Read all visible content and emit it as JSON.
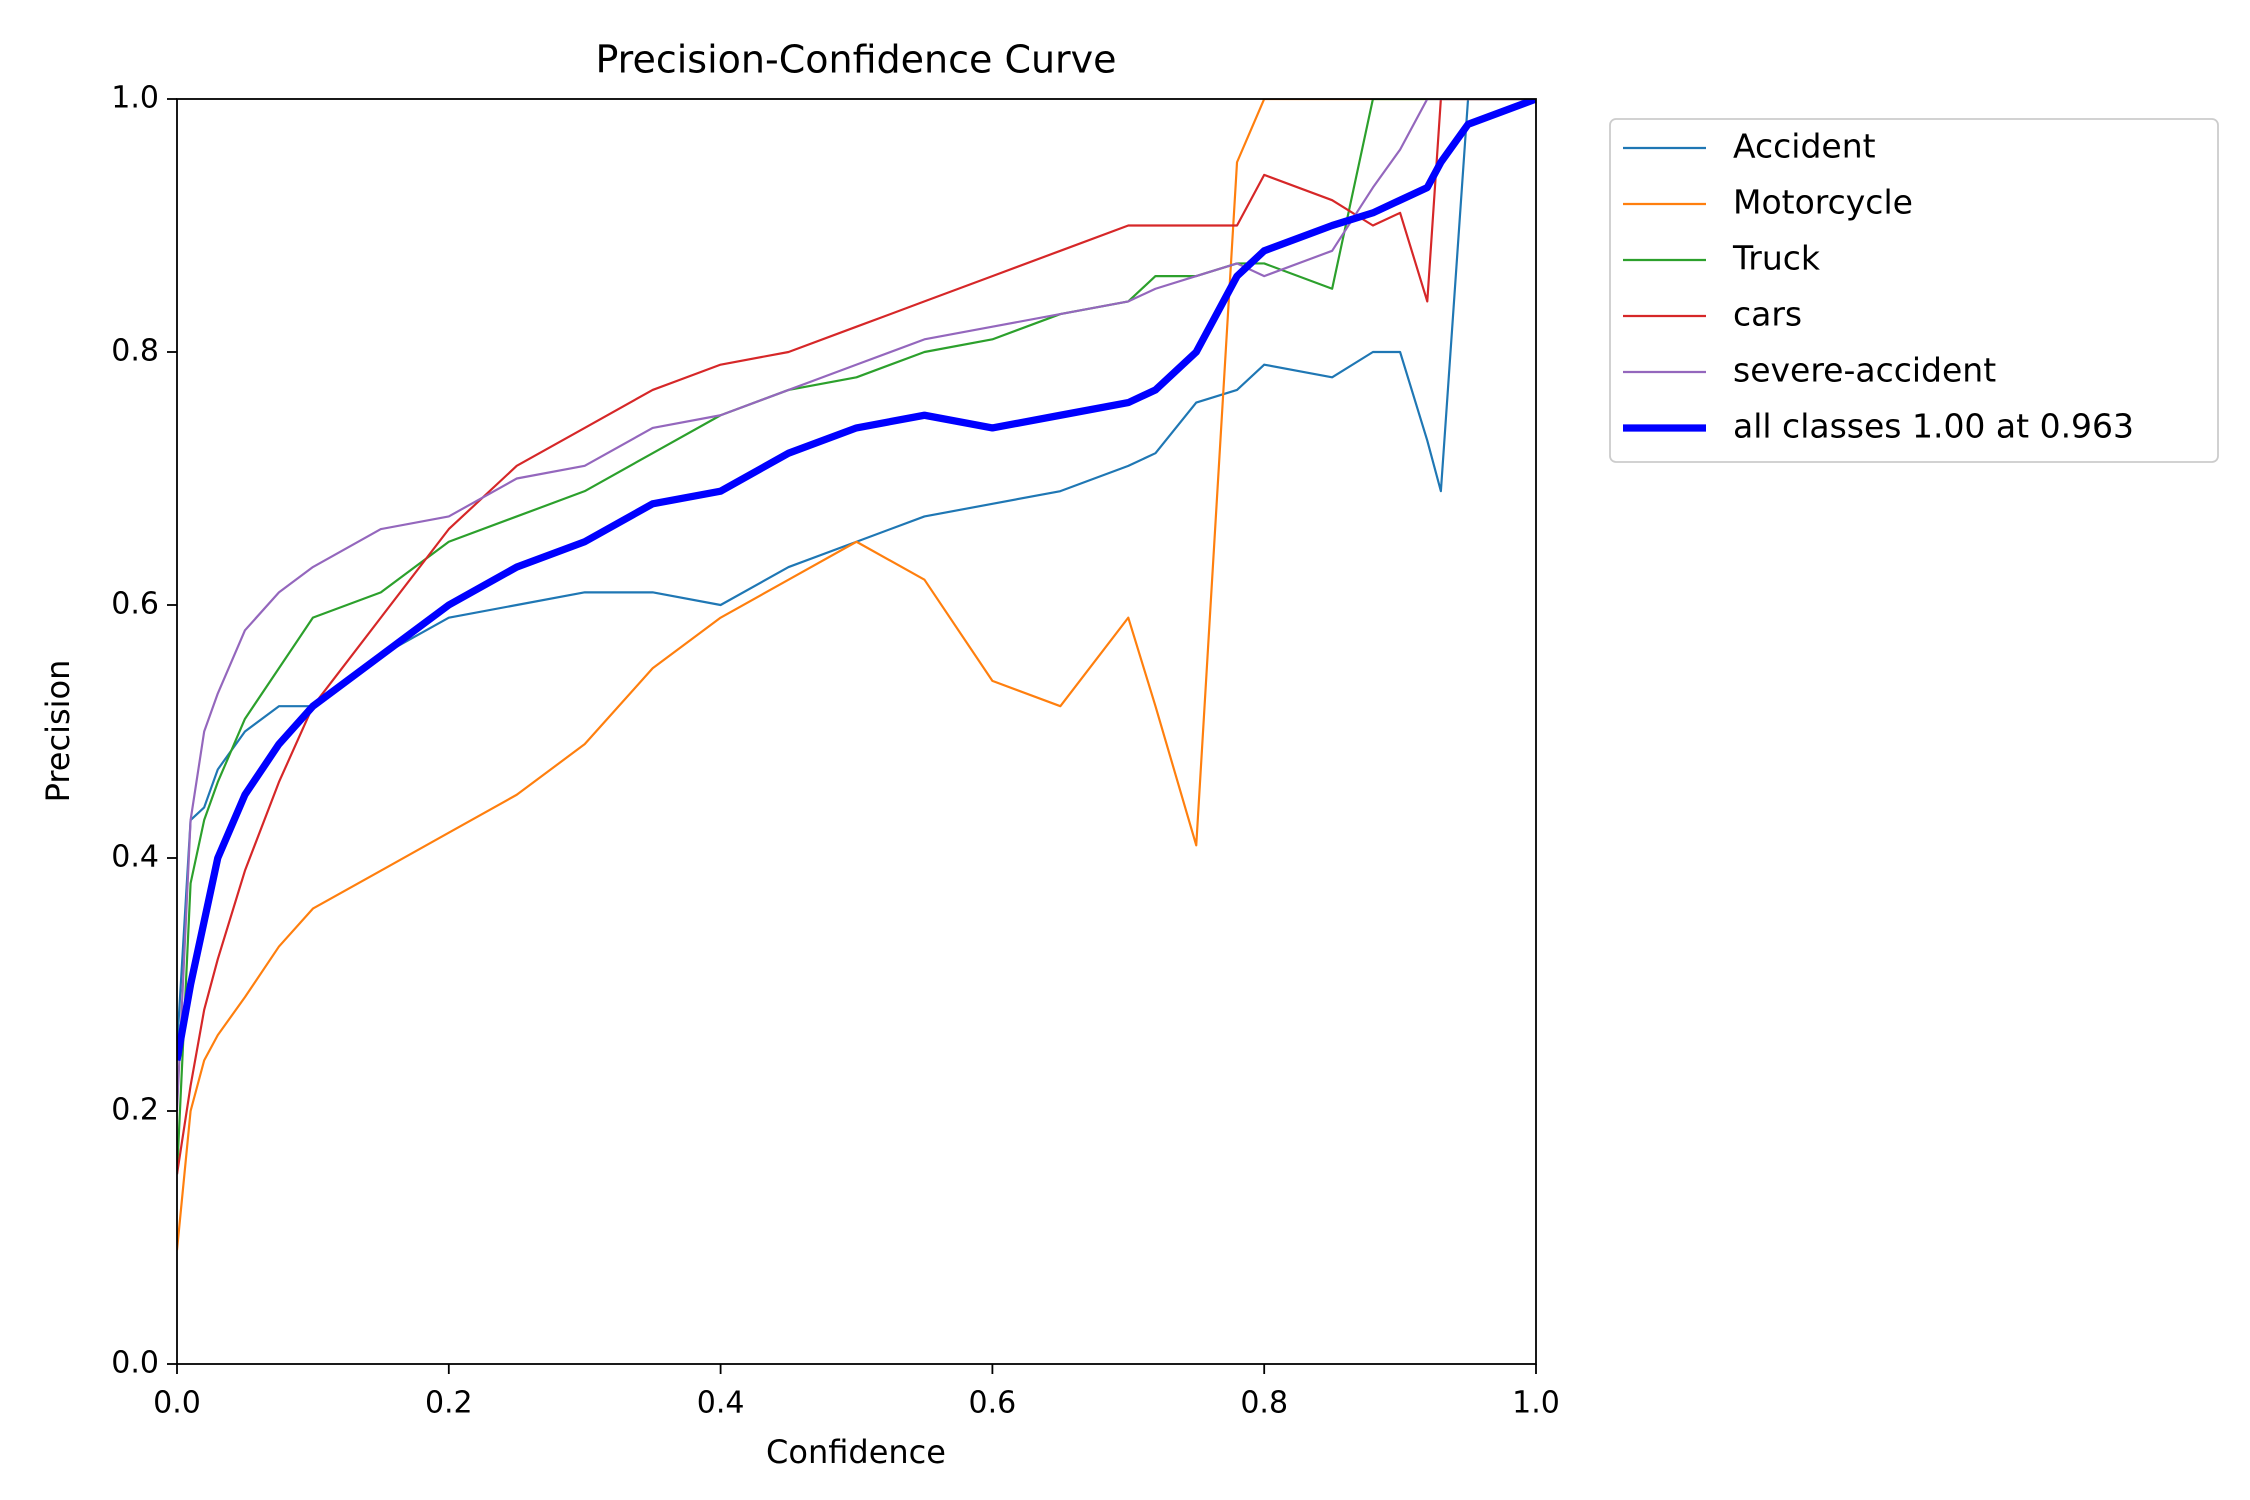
{
  "chart_data": {
    "type": "line",
    "title": "Precision-Confidence Curve",
    "x_label": "Confidence",
    "y_label": "Precision",
    "x": [
      0,
      0.01,
      0.02,
      0.03,
      0.05,
      0.075,
      0.1,
      0.15,
      0.2,
      0.25,
      0.3,
      0.35,
      0.4,
      0.45,
      0.5,
      0.55,
      0.6,
      0.65,
      0.7,
      0.72,
      0.75,
      0.78,
      0.8,
      0.85,
      0.88,
      0.9,
      0.92,
      0.93,
      0.95,
      1.0
    ],
    "series": [
      {
        "name": "Accident",
        "color": "#1f77b4",
        "linewidth": 1.5,
        "values": [
          0.25,
          0.43,
          0.44,
          0.47,
          0.5,
          0.52,
          0.52,
          0.56,
          0.59,
          0.6,
          0.61,
          0.61,
          0.6,
          0.63,
          0.65,
          0.67,
          0.68,
          0.69,
          0.71,
          0.72,
          0.76,
          0.77,
          0.79,
          0.78,
          0.8,
          0.8,
          0.73,
          0.69,
          1.0,
          1.0
        ]
      },
      {
        "name": "Motorcycle",
        "color": "#ff7f0e",
        "linewidth": 1.5,
        "values": [
          0.09,
          0.2,
          0.24,
          0.26,
          0.29,
          0.33,
          0.36,
          0.39,
          0.42,
          0.45,
          0.49,
          0.55,
          0.59,
          0.62,
          0.65,
          0.62,
          0.54,
          0.52,
          0.59,
          0.52,
          0.41,
          0.95,
          1.0,
          1.0,
          1.0,
          1.0,
          1.0,
          1.0,
          1.0,
          1.0
        ]
      },
      {
        "name": "Truck",
        "color": "#2ca02c",
        "linewidth": 1.5,
        "values": [
          0.15,
          0.38,
          0.43,
          0.46,
          0.51,
          0.55,
          0.59,
          0.61,
          0.65,
          0.67,
          0.69,
          0.72,
          0.75,
          0.77,
          0.78,
          0.8,
          0.81,
          0.83,
          0.84,
          0.86,
          0.86,
          0.87,
          0.87,
          0.85,
          1.0,
          1.0,
          1.0,
          1.0,
          1.0,
          1.0
        ]
      },
      {
        "name": "cars",
        "color": "#d62728",
        "linewidth": 1.5,
        "values": [
          0.15,
          0.22,
          0.28,
          0.32,
          0.39,
          0.46,
          0.52,
          0.59,
          0.66,
          0.71,
          0.74,
          0.77,
          0.79,
          0.8,
          0.82,
          0.84,
          0.86,
          0.88,
          0.9,
          0.9,
          0.9,
          0.9,
          0.94,
          0.92,
          0.9,
          0.91,
          0.84,
          1.0,
          1.0,
          1.0
        ]
      },
      {
        "name": "severe-accident",
        "color": "#9467bd",
        "linewidth": 1.5,
        "values": [
          0.2,
          0.43,
          0.5,
          0.53,
          0.58,
          0.61,
          0.63,
          0.66,
          0.67,
          0.7,
          0.71,
          0.74,
          0.75,
          0.77,
          0.79,
          0.81,
          0.82,
          0.83,
          0.84,
          0.85,
          0.86,
          0.87,
          0.86,
          0.88,
          0.93,
          0.96,
          1.0,
          1.0,
          1.0,
          1.0
        ]
      },
      {
        "name": "all classes 1.00 at 0.963",
        "color": "#0000ff",
        "linewidth": 5,
        "values": [
          0.24,
          0.3,
          0.35,
          0.4,
          0.45,
          0.49,
          0.52,
          0.56,
          0.6,
          0.63,
          0.65,
          0.68,
          0.69,
          0.72,
          0.74,
          0.75,
          0.74,
          0.75,
          0.76,
          0.77,
          0.8,
          0.86,
          0.88,
          0.9,
          0.91,
          0.92,
          0.93,
          0.95,
          0.98,
          1.0
        ]
      }
    ],
    "xlim": [
      0,
      1.0
    ],
    "ylim": [
      0,
      1.0
    ],
    "xticks": [
      {
        "value": 0,
        "label": "0.0"
      },
      0.2,
      0.4,
      0.6,
      0.8,
      {
        "value": 1.0,
        "label": "1.0"
      }
    ],
    "yticks": [
      {
        "value": 0,
        "label": "0.0"
      },
      0.2,
      0.4,
      0.6,
      0.8,
      {
        "value": 1.0,
        "label": "1.0"
      }
    ],
    "legend": "outside-upper-right"
  }
}
